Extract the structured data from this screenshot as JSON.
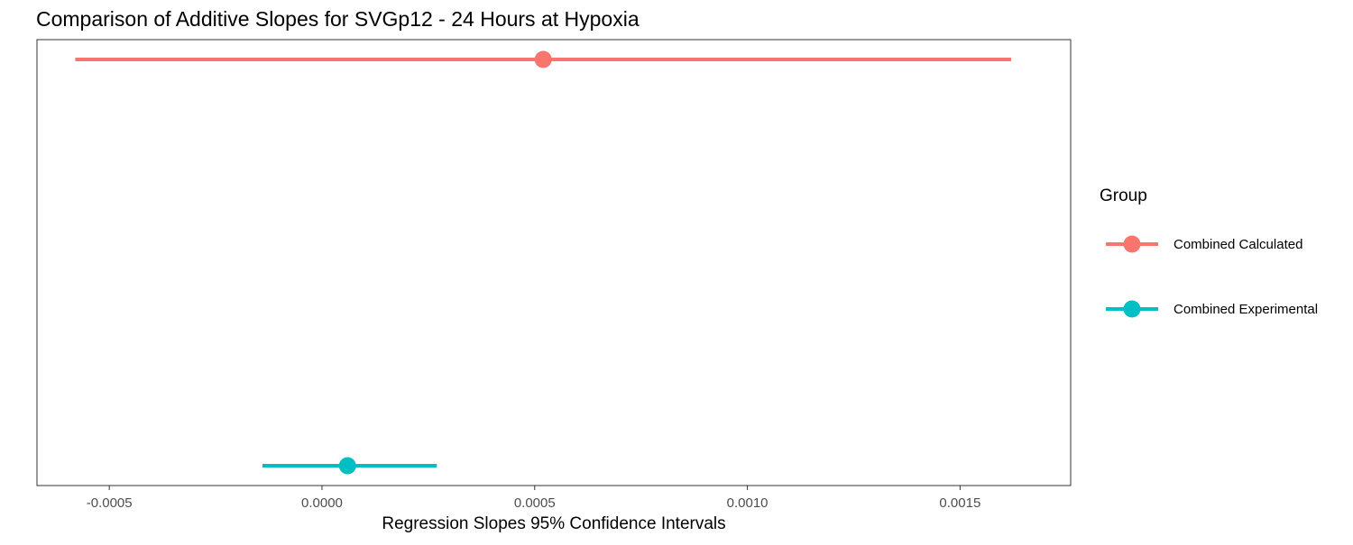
{
  "chart_data": {
    "type": "errorbar",
    "title": "Comparison of Additive Slopes for SVGp12 - 24 Hours at Hypoxia",
    "xlabel": "Regression Slopes 95% Confidence Intervals",
    "ylabel": "",
    "xlim": [
      -0.00067,
      0.00176
    ],
    "x_ticks": [
      -0.0005,
      0.0,
      0.0005,
      0.001,
      0.0015
    ],
    "x_tick_labels": [
      "-0.0005",
      "0.0000",
      "0.0005",
      "0.0010",
      "0.0015"
    ],
    "grid": false,
    "legend": {
      "title": "Group",
      "position": "right"
    },
    "series": [
      {
        "name": "Combined Calculated",
        "color": "#F8766D",
        "estimate": 0.00052,
        "lower": -0.00058,
        "upper": 0.00162
      },
      {
        "name": "Combined Experimental",
        "color": "#00BFC4",
        "estimate": 6e-05,
        "lower": -0.00014,
        "upper": 0.00027
      }
    ]
  }
}
